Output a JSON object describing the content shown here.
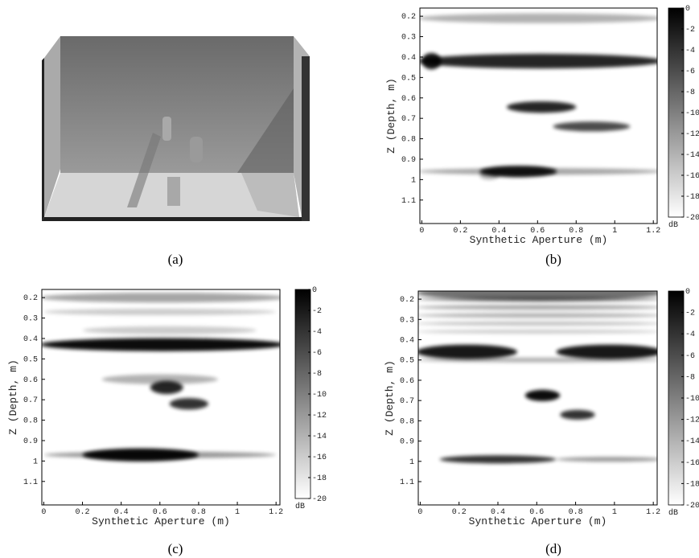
{
  "figure": {
    "panels": [
      {
        "caption": "(a)"
      },
      {
        "caption": "(b)",
        "xlabel": "Synthetic Aperture (m)",
        "ylabel": "Z (Depth, m)",
        "xticks": [
          "0",
          "0.2",
          "0.4",
          "0.6",
          "0.8",
          "1",
          "1.2"
        ],
        "yticks": [
          "0.2",
          "0.3",
          "0.4",
          "0.5",
          "0.6",
          "0.7",
          "0.8",
          "0.9",
          "1",
          "1.1"
        ],
        "colorbar_ticks": [
          "0",
          "-2",
          "-4",
          "-6",
          "-8",
          "-10",
          "-12",
          "-14",
          "-16",
          "-18",
          "-20"
        ],
        "colorbar_unit": "dB"
      },
      {
        "caption": "(c)",
        "xlabel": "Synthetic Aperture (m)",
        "ylabel": "Z (Depth, m)",
        "xticks": [
          "0",
          "0.2",
          "0.4",
          "0.6",
          "0.8",
          "1",
          "1.2"
        ],
        "yticks": [
          "0.2",
          "0.3",
          "0.4",
          "0.5",
          "0.6",
          "0.7",
          "0.8",
          "0.9",
          "1",
          "1.1"
        ],
        "colorbar_ticks": [
          "0",
          "-2",
          "-4",
          "-6",
          "-8",
          "-10",
          "-12",
          "-14",
          "-16",
          "-18",
          "-20"
        ],
        "colorbar_unit": "dB"
      },
      {
        "caption": "(d)",
        "xlabel": "Synthetic Aperture (m)",
        "ylabel": "Z (Depth, m)",
        "xticks": [
          "0",
          "0.2",
          "0.4",
          "0.6",
          "0.8",
          "1",
          "1.2"
        ],
        "yticks": [
          "0.2",
          "0.3",
          "0.4",
          "0.5",
          "0.6",
          "0.7",
          "0.8",
          "0.9",
          "1",
          "1.1"
        ],
        "colorbar_ticks": [
          "0",
          "-2",
          "-4",
          "-6",
          "-8",
          "-10",
          "-12",
          "-14",
          "-16",
          "-18",
          "-20"
        ],
        "colorbar_unit": "dB"
      }
    ]
  }
}
